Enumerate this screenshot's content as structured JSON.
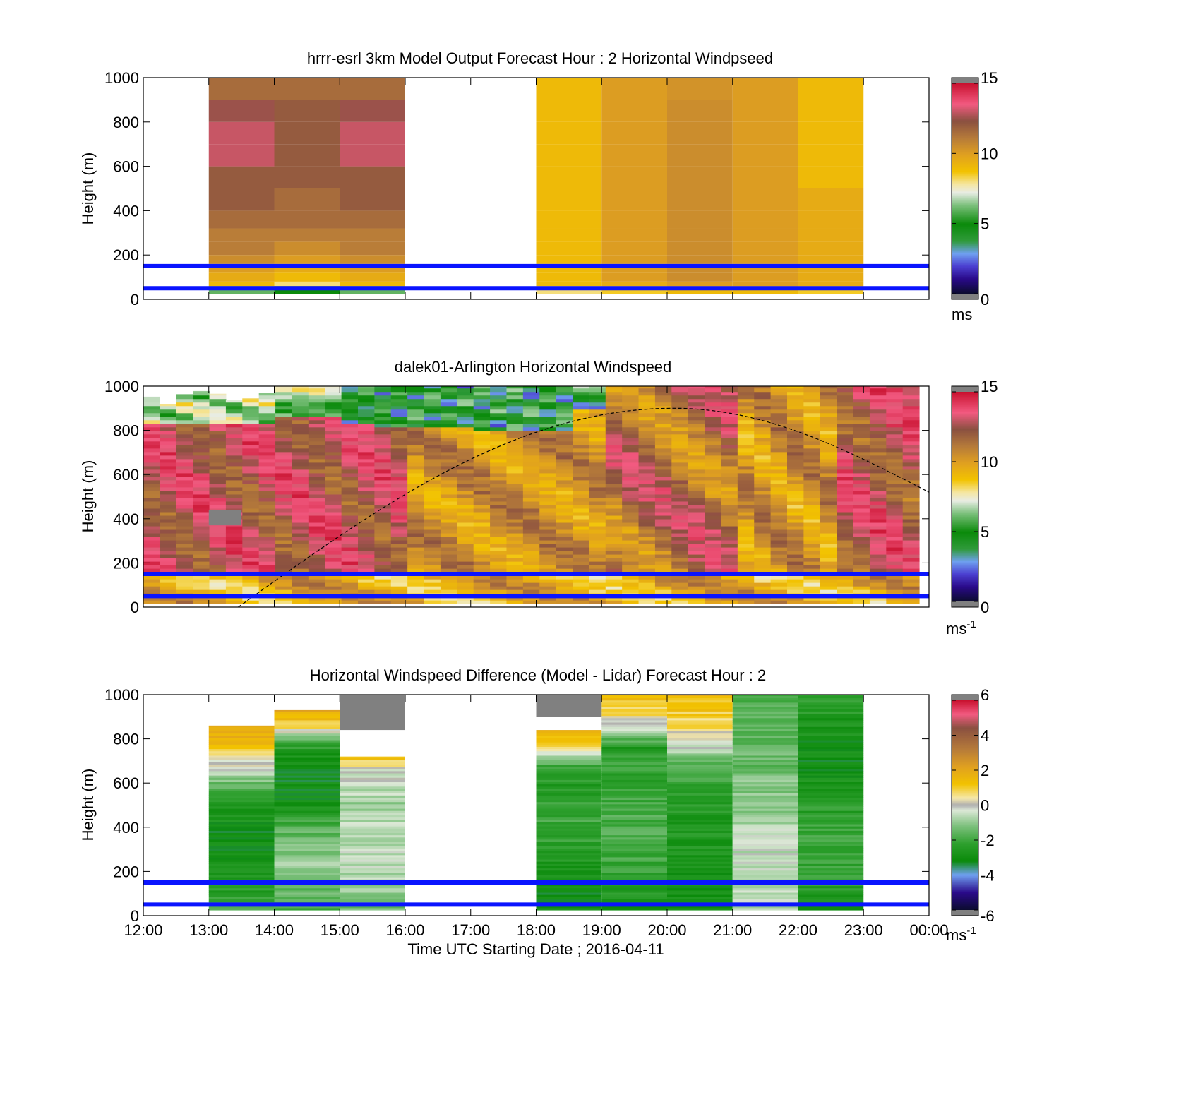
{
  "figure": {
    "xlabel": "Time UTC  Starting Date ; 2016-04-11",
    "xtick_labels": [
      "12:00",
      "13:00",
      "14:00",
      "15:00",
      "16:00",
      "17:00",
      "18:00",
      "19:00",
      "20:00",
      "21:00",
      "22:00",
      "23:00",
      "00:00"
    ]
  },
  "chart_data": [
    {
      "type": "heatmap",
      "title": "hrrr-esrl 3km Model Output   Forecast Hour : 2 Horizontal Windpseed",
      "ylabel": "Height (m)",
      "xlim": [
        12,
        24
      ],
      "ylim": [
        0,
        1000
      ],
      "yticks": [
        "0",
        "200",
        "400",
        "600",
        "800",
        "1000"
      ],
      "colorbar": {
        "min": 0,
        "max": 15,
        "ticks": [
          "0",
          "5",
          "10",
          "15"
        ],
        "unit": "ms"
      },
      "reference_lines_m": [
        50,
        150
      ],
      "columns": [
        {
          "hour_start": 13,
          "hour_end": 14,
          "profile": [
            6,
            9,
            9.5,
            10,
            10.5,
            11,
            11,
            11.5,
            12,
            12,
            13,
            13,
            12.5,
            11.5
          ]
        },
        {
          "hour_start": 14,
          "hour_end": 15,
          "profile": [
            5,
            8,
            9,
            9.5,
            10,
            10.5,
            11,
            11.5,
            11.5,
            12,
            12,
            12,
            12,
            11.5
          ]
        },
        {
          "hour_start": 15,
          "hour_end": 16,
          "profile": [
            6,
            9,
            9.5,
            10,
            10.5,
            11,
            11,
            11.5,
            12,
            12,
            13,
            13,
            12.5,
            11.5
          ]
        },
        {
          "hour_start": 18,
          "hour_end": 19,
          "profile": [
            8,
            9,
            9,
            9,
            9,
            9,
            9,
            9,
            9,
            9,
            9,
            9,
            9,
            9
          ]
        },
        {
          "hour_start": 19,
          "hour_end": 20,
          "profile": [
            8.5,
            9.5,
            10,
            10,
            10,
            10,
            10,
            10,
            10,
            10,
            10,
            10,
            10,
            10
          ]
        },
        {
          "hour_start": 20,
          "hour_end": 21,
          "profile": [
            9,
            10,
            10.5,
            10.5,
            10.5,
            10.5,
            10.5,
            10.5,
            10.5,
            10.5,
            10.5,
            10.5,
            10.5,
            10.3
          ]
        },
        {
          "hour_start": 21,
          "hour_end": 22,
          "profile": [
            9,
            10,
            10,
            10,
            10,
            10,
            10,
            10,
            10,
            10,
            10,
            10,
            10,
            10
          ]
        },
        {
          "hour_start": 22,
          "hour_end": 23,
          "profile": [
            8.5,
            9.5,
            9.5,
            9.5,
            9.5,
            9.5,
            9.5,
            9.5,
            9.5,
            9,
            9,
            9,
            9,
            9
          ]
        }
      ]
    },
    {
      "type": "heatmap",
      "title": "dalek01-Arlington  Horizontal Windspeed",
      "ylabel": "Height (m)",
      "xlim": [
        12,
        24
      ],
      "ylim": [
        0,
        1000
      ],
      "yticks": [
        "0",
        "200",
        "400",
        "600",
        "800",
        "1000"
      ],
      "colorbar": {
        "min": 0,
        "max": 15,
        "ticks": [
          "0",
          "5",
          "10",
          "15"
        ],
        "unit": "ms",
        "unit_exp": "-1"
      },
      "reference_lines_m": [
        50,
        150
      ],
      "boundary_curve": {
        "start_hour": 13.45,
        "peak_hour": 20.1,
        "peak_m": 900,
        "end_hour": 24,
        "end_m": 520
      },
      "missing_patches": [
        {
          "hour_start": 13.0,
          "hour_end": 13.5,
          "z_min": 370,
          "z_max": 440
        }
      ]
    },
    {
      "type": "heatmap",
      "title": "Horizontal Windspeed Difference (Model - Lidar) Forecast Hour : 2",
      "ylabel": "Height (m)",
      "xlim": [
        12,
        24
      ],
      "ylim": [
        0,
        1000
      ],
      "yticks": [
        "0",
        "200",
        "400",
        "600",
        "800",
        "1000"
      ],
      "colorbar": {
        "min": -6,
        "max": 6,
        "ticks": [
          "-6",
          "-4",
          "-2",
          "0",
          "2",
          "4",
          "6"
        ],
        "unit": "ms",
        "unit_exp": "-1"
      },
      "reference_lines_m": [
        50,
        150
      ],
      "columns": [
        {
          "hour_start": 13,
          "hour_end": 14,
          "top_m": 860,
          "profile": [
            -1.5,
            -2.5,
            -2.5,
            -2.8,
            -3.0,
            -3.0,
            -2.8,
            -2.5,
            -1.5,
            -0.5,
            0.5,
            1.5,
            1.8
          ]
        },
        {
          "hour_start": 14,
          "hour_end": 15,
          "top_m": 930,
          "profile": [
            -2.0,
            -1.5,
            -1.0,
            -1.0,
            -1.2,
            -1.8,
            -2.8,
            -3.0,
            -3.0,
            -3.0,
            -2.0,
            1.0,
            2.0
          ]
        },
        {
          "hour_start": 15,
          "hour_end": 16,
          "top_m": 720,
          "profile": [
            -1.5,
            -1.0,
            -0.8,
            -0.6,
            -0.6,
            -0.5,
            -0.8,
            -1.0,
            -0.4,
            -0.3,
            1.5
          ]
        },
        {
          "hour_start": 18,
          "hour_end": 19,
          "top_m": 840,
          "profile": [
            -3.0,
            -3.0,
            -2.8,
            -2.5,
            -2.2,
            -2.0,
            -2.2,
            -2.5,
            -2.0,
            0.5,
            2.0
          ]
        },
        {
          "hour_start": 19,
          "hour_end": 20,
          "top_m": 1000,
          "profile": [
            -2.8,
            -2.5,
            -2.2,
            -2.0,
            -1.8,
            -1.8,
            -2.0,
            -2.2,
            -2.2,
            -2.5,
            -0.5,
            0.8,
            1.5
          ]
        },
        {
          "hour_start": 20,
          "hour_end": 21,
          "top_m": 1000,
          "profile": [
            -3.0,
            -3.0,
            -2.8,
            -2.6,
            -2.6,
            -2.6,
            -2.4,
            -2.2,
            -1.8,
            -0.4,
            0.5,
            1.0,
            1.5
          ]
        },
        {
          "hour_start": 21,
          "hour_end": 22,
          "top_m": 1000,
          "profile": [
            -0.8,
            -0.6,
            -0.4,
            -0.5,
            -0.6,
            -0.8,
            -1.0,
            -1.2,
            -1.5,
            -1.5,
            -1.5,
            -1.8,
            -2.0
          ]
        },
        {
          "hour_start": 22,
          "hour_end": 23,
          "top_m": 1000,
          "profile": [
            -2.8,
            -2.5,
            -2.2,
            -2.0,
            -2.0,
            -2.2,
            -2.5,
            -2.8,
            -3.0,
            -3.0,
            -2.8,
            -2.5,
            -2.2
          ]
        }
      ],
      "missing_patches": [
        {
          "hour_start": 15,
          "hour_end": 16,
          "z_min": 840,
          "z_max": 1000
        },
        {
          "hour_start": 18,
          "hour_end": 19,
          "z_min": 900,
          "z_max": 1000
        }
      ]
    }
  ]
}
